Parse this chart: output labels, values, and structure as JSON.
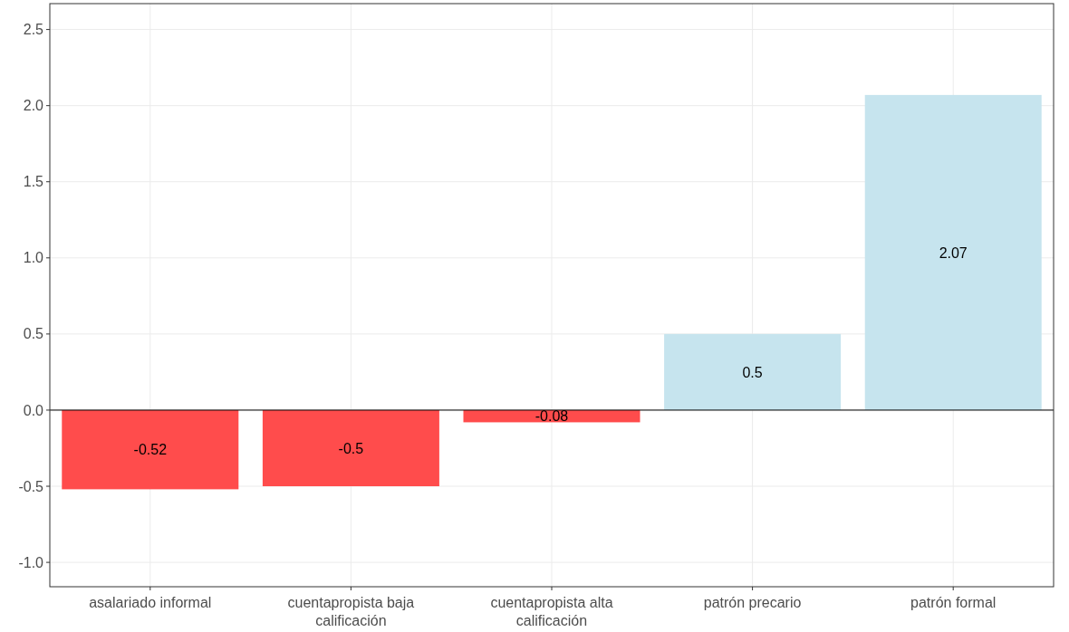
{
  "chart_data": {
    "type": "bar",
    "categories": [
      "asalariado informal",
      "cuentapropista baja calificación",
      "cuentapropista alta calificación",
      "patrón precario",
      "patrón formal"
    ],
    "values": [
      -0.52,
      -0.5,
      -0.08,
      0.5,
      2.07
    ],
    "colors": [
      "#ff4c4c",
      "#ff4c4c",
      "#ff4c4c",
      "#c6e4ee",
      "#c6e4ee"
    ],
    "ylim": [
      -1.16,
      2.67
    ],
    "yticks": [
      {
        "value": -1,
        "label": "-1.0"
      },
      {
        "value": -0.5,
        "label": "-0.5"
      },
      {
        "value": 0,
        "label": "0.0"
      },
      {
        "value": 0.5,
        "label": "0.5"
      },
      {
        "value": 1,
        "label": "1.0"
      },
      {
        "value": 1.5,
        "label": "1.5"
      },
      {
        "value": 2,
        "label": "2.0"
      },
      {
        "value": 2.5,
        "label": "2.5"
      }
    ],
    "grid": true,
    "data_labels": true,
    "ref_lines": [
      {
        "axis": "y",
        "value": 0,
        "color": "#000000"
      }
    ]
  }
}
